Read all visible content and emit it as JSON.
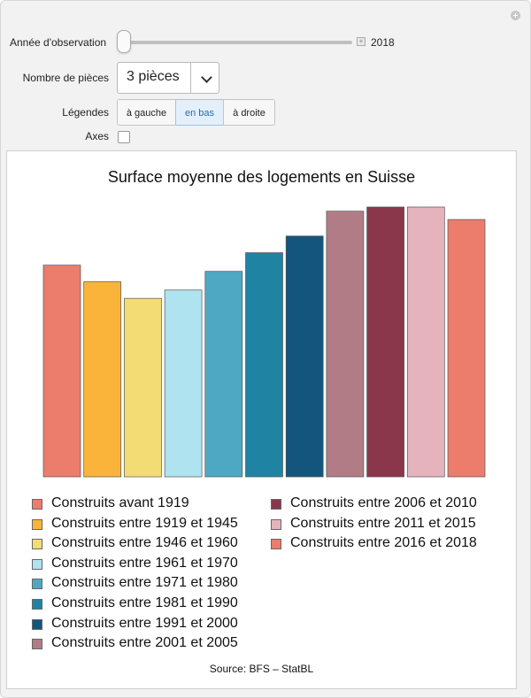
{
  "controls": {
    "year_label": "Année d'observation",
    "year_value": "2018",
    "year_slider_position": 0.0,
    "rooms_label": "Nombre de pièces",
    "rooms_selected": "3 pièces",
    "legend_label": "Légendes",
    "legend_options": [
      "à gauche",
      "en bas",
      "à droite"
    ],
    "legend_selected": "en bas",
    "axes_label": "Axes",
    "axes_checked": false
  },
  "chart_data": {
    "type": "bar",
    "title": "Surface moyenne des logements en Suisse",
    "source": "Source: BFS – StatBL",
    "axes_shown": false,
    "legend_position": "bottom",
    "series": [
      {
        "name": "Construits avant 1919",
        "value": 86,
        "color": "#EC7C6B"
      },
      {
        "name": "Construits entre 1919 et 1945",
        "value": 82,
        "color": "#FBB43A"
      },
      {
        "name": "Construits entre 1946 et 1960",
        "value": 78,
        "color": "#F3DC74"
      },
      {
        "name": "Construits entre 1961 et 1970",
        "value": 80,
        "color": "#AEE3EF"
      },
      {
        "name": "Construits entre 1971 et 1980",
        "value": 84.5,
        "color": "#4EA8C3"
      },
      {
        "name": "Construits entre 1981 et 1990",
        "value": 89,
        "color": "#1F84A4"
      },
      {
        "name": "Construits entre 1991 et 2000",
        "value": 93,
        "color": "#13557C"
      },
      {
        "name": "Construits entre 2001 et 2005",
        "value": 99,
        "color": "#B27C87"
      },
      {
        "name": "Construits entre 2006 et 2010",
        "value": 100,
        "color": "#8A374C"
      },
      {
        "name": "Construits entre 2011 et 2015",
        "value": 100,
        "color": "#E5B3BE"
      },
      {
        "name": "Construits entre 2016 et 2018",
        "value": 97,
        "color": "#EC7C6B"
      }
    ]
  }
}
